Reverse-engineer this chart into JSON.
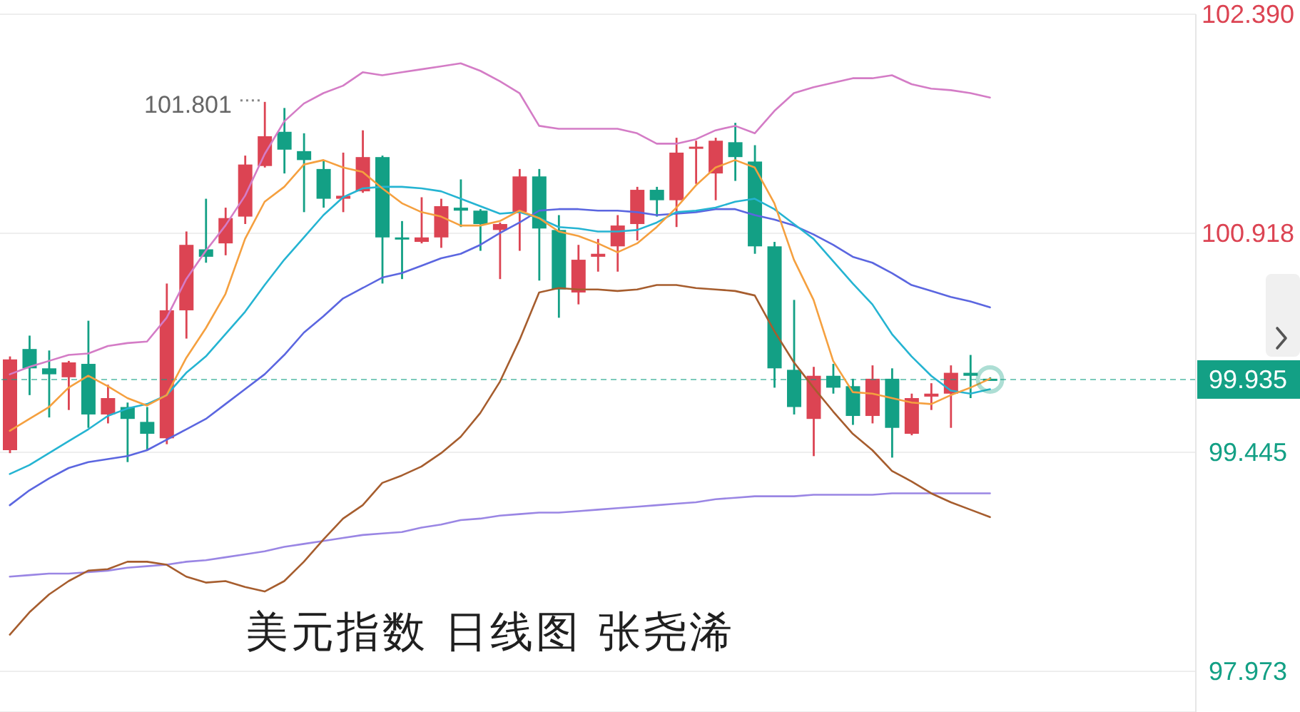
{
  "chart_data": {
    "type": "candlestick",
    "title": "美元指数 日线图 张尧浠",
    "categories": [
      null,
      null,
      null,
      null,
      null,
      null,
      null,
      null,
      null,
      null,
      null,
      null,
      null,
      null,
      null,
      null,
      null,
      null,
      null,
      null,
      null,
      null,
      null,
      null,
      null,
      null,
      null,
      null,
      null,
      null,
      null,
      null,
      null,
      null,
      null,
      null,
      null,
      null,
      null,
      null,
      null,
      null,
      null,
      null,
      null,
      null,
      null,
      null,
      null,
      null,
      null,
      null,
      null,
      null,
      null,
      null,
      null,
      null,
      null,
      null,
      null
    ],
    "ohlc": [
      [
        99.46,
        100.09,
        99.44,
        100.07
      ],
      [
        100.14,
        100.23,
        99.83,
        100.01
      ],
      [
        100.01,
        100.13,
        99.68,
        99.97
      ],
      [
        99.95,
        100.06,
        99.73,
        100.05
      ],
      [
        100.04,
        100.33,
        99.61,
        99.7
      ],
      [
        99.7,
        99.9,
        99.64,
        99.81
      ],
      [
        99.75,
        99.78,
        99.38,
        99.67
      ],
      [
        99.65,
        99.75,
        99.46,
        99.57
      ],
      [
        99.54,
        100.58,
        99.5,
        100.4
      ],
      [
        100.4,
        100.93,
        100.21,
        100.84
      ],
      [
        100.81,
        101.15,
        100.72,
        100.76
      ],
      [
        100.85,
        101.09,
        100.77,
        101.02
      ],
      [
        101.03,
        101.44,
        100.98,
        101.38
      ],
      [
        101.37,
        101.801,
        101.36,
        101.57
      ],
      [
        101.6,
        101.76,
        101.32,
        101.48
      ],
      [
        101.47,
        101.59,
        101.06,
        101.41
      ],
      [
        101.35,
        101.41,
        101.09,
        101.15
      ],
      [
        101.15,
        101.46,
        101.06,
        101.17
      ],
      [
        101.2,
        101.61,
        101.19,
        101.43
      ],
      [
        101.43,
        101.44,
        100.58,
        100.89
      ],
      [
        100.89,
        101.0,
        100.61,
        100.88
      ],
      [
        100.86,
        101.16,
        100.85,
        100.89
      ],
      [
        100.89,
        101.15,
        100.82,
        101.1
      ],
      [
        101.09,
        101.28,
        100.96,
        101.07
      ],
      [
        101.07,
        101.08,
        100.8,
        100.98
      ],
      [
        100.94,
        100.99,
        100.61,
        100.98
      ],
      [
        101.06,
        101.35,
        100.8,
        101.3
      ],
      [
        101.3,
        101.35,
        100.6,
        100.95
      ],
      [
        100.94,
        101.04,
        100.35,
        100.54
      ],
      [
        100.52,
        100.84,
        100.44,
        100.74
      ],
      [
        100.76,
        100.88,
        100.66,
        100.78
      ],
      [
        100.83,
        101.04,
        100.66,
        100.97
      ],
      [
        100.98,
        101.23,
        100.87,
        101.21
      ],
      [
        101.21,
        101.23,
        101.03,
        101.14
      ],
      [
        101.14,
        101.56,
        100.96,
        101.46
      ],
      [
        101.49,
        101.54,
        101.25,
        101.5
      ],
      [
        101.32,
        101.56,
        101.14,
        101.54
      ],
      [
        101.53,
        101.66,
        101.27,
        101.43
      ],
      [
        101.4,
        101.51,
        100.78,
        100.83
      ],
      [
        100.83,
        100.86,
        99.88,
        100.01
      ],
      [
        100.0,
        100.47,
        99.7,
        99.75
      ],
      [
        99.67,
        100.02,
        99.42,
        99.96
      ],
      [
        99.96,
        100.04,
        99.84,
        99.88
      ],
      [
        99.89,
        99.94,
        99.63,
        99.69
      ],
      [
        99.69,
        100.03,
        99.64,
        99.94
      ],
      [
        99.94,
        100.01,
        99.41,
        99.61
      ],
      [
        99.57,
        99.84,
        99.56,
        99.81
      ],
      [
        99.82,
        99.91,
        99.73,
        99.84
      ],
      [
        99.84,
        100.03,
        99.61,
        99.98
      ],
      [
        99.98,
        100.1,
        99.81,
        99.96
      ],
      [
        99.94,
        99.95,
        99.93,
        99.935
      ],
      null,
      null,
      null,
      null,
      null,
      null,
      null,
      null,
      null,
      null
    ],
    "colors": [
      "#dc4453",
      "#13a085",
      "#13a085",
      "#dc4453",
      "#13a085",
      "#dc4453",
      "#13a085",
      "#13a085",
      "#dc4453",
      "#dc4453",
      "#13a085",
      "#dc4453",
      "#dc4453",
      "#dc4453",
      "#13a085",
      "#13a085",
      "#13a085",
      "#dc4453",
      "#dc4453",
      "#13a085",
      "#13a085",
      "#dc4453",
      "#dc4453",
      "#13a085",
      "#13a085",
      "#dc4453",
      "#dc4453",
      "#13a085",
      "#13a085",
      "#dc4453",
      "#dc4453",
      "#dc4453",
      "#dc4453",
      "#13a085",
      "#dc4453",
      "#dc4453",
      "#dc4453",
      "#13a085",
      "#13a085",
      "#13a085",
      "#13a085",
      "#dc4453",
      "#13a085",
      "#13a085",
      "#dc4453",
      "#13a085",
      "#dc4453",
      "#dc4453",
      "#dc4453",
      "#13a085",
      "#13a085",
      null,
      null,
      null,
      null,
      null,
      null,
      null,
      null,
      null,
      null
    ],
    "series": [
      {
        "type": "line",
        "color": "#9a86e4",
        "values": [
          98.61,
          98.62,
          98.63,
          98.63,
          98.64,
          98.65,
          98.67,
          98.68,
          98.69,
          98.71,
          98.72,
          98.74,
          98.76,
          98.78,
          98.81,
          98.83,
          98.85,
          98.87,
          98.89,
          98.9,
          98.91,
          98.94,
          98.96,
          98.99,
          99.0,
          99.02,
          99.03,
          99.04,
          99.04,
          99.05,
          99.06,
          99.07,
          99.08,
          99.09,
          99.1,
          99.11,
          99.13,
          99.14,
          99.15,
          99.15,
          99.15,
          99.16,
          99.16,
          99.16,
          99.16,
          99.17,
          99.17,
          99.17,
          99.17,
          99.17,
          99.17,
          null,
          null,
          null,
          null,
          null,
          null,
          null,
          null,
          null,
          null
        ]
      },
      {
        "type": "line",
        "color": "#d47cc6",
        "values": [
          99.97,
          100.02,
          100.06,
          100.1,
          100.11,
          100.16,
          100.18,
          100.19,
          100.35,
          100.61,
          100.8,
          100.97,
          101.17,
          101.45,
          101.67,
          101.79,
          101.86,
          101.91,
          102.0,
          101.98,
          102.0,
          102.02,
          102.04,
          102.06,
          102.01,
          101.94,
          101.86,
          101.64,
          101.62,
          101.62,
          101.62,
          101.62,
          101.59,
          101.52,
          101.52,
          101.55,
          101.61,
          101.64,
          101.59,
          101.74,
          101.86,
          101.9,
          101.93,
          101.96,
          101.96,
          101.98,
          101.92,
          101.89,
          101.88,
          101.86,
          101.83,
          null,
          null,
          null,
          null,
          null,
          null,
          null,
          null,
          null,
          null
        ]
      },
      {
        "type": "line",
        "color": "#a65d2e",
        "values": [
          98.22,
          98.37,
          98.49,
          98.58,
          98.65,
          98.66,
          98.71,
          98.71,
          98.69,
          98.61,
          98.57,
          98.58,
          98.54,
          98.51,
          98.58,
          98.71,
          98.86,
          99.0,
          99.09,
          99.24,
          99.29,
          99.35,
          99.44,
          99.55,
          99.71,
          99.92,
          100.2,
          100.52,
          100.55,
          100.54,
          100.54,
          100.53,
          100.54,
          100.57,
          100.57,
          100.55,
          100.54,
          100.53,
          100.5,
          100.26,
          100.05,
          99.88,
          99.72,
          99.57,
          99.46,
          99.32,
          99.25,
          99.17,
          99.11,
          99.06,
          99.01,
          null,
          null,
          null,
          null,
          null,
          null,
          null,
          null,
          null,
          null
        ]
      },
      {
        "type": "line",
        "color": "#5b66e0",
        "values": [
          99.09,
          99.19,
          99.27,
          99.34,
          99.38,
          99.4,
          99.42,
          99.46,
          99.53,
          99.6,
          99.67,
          99.77,
          99.87,
          99.97,
          100.1,
          100.25,
          100.36,
          100.48,
          100.55,
          100.62,
          100.65,
          100.7,
          100.75,
          100.78,
          100.84,
          100.92,
          100.99,
          101.07,
          101.08,
          101.08,
          101.07,
          101.07,
          101.06,
          101.04,
          101.05,
          101.06,
          101.08,
          101.08,
          101.04,
          101.01,
          100.97,
          100.91,
          100.84,
          100.76,
          100.72,
          100.65,
          100.57,
          100.53,
          100.49,
          100.46,
          100.42,
          null,
          null,
          null,
          null,
          null,
          null,
          null,
          null,
          null,
          null
        ]
      },
      {
        "type": "line",
        "color": "#25b4d2",
        "values": [
          99.3,
          99.36,
          99.44,
          99.52,
          99.6,
          99.69,
          99.74,
          99.77,
          99.83,
          99.98,
          100.09,
          100.24,
          100.39,
          100.57,
          100.74,
          100.89,
          101.04,
          101.16,
          101.22,
          101.23,
          101.23,
          101.22,
          101.2,
          101.15,
          101.1,
          101.05,
          101.06,
          101.02,
          100.96,
          100.95,
          100.93,
          100.93,
          100.94,
          100.99,
          101.06,
          101.07,
          101.09,
          101.13,
          101.15,
          101.08,
          100.98,
          100.88,
          100.73,
          100.58,
          100.44,
          100.24,
          100.09,
          99.96,
          99.86,
          99.84,
          99.87,
          null,
          null,
          null,
          null,
          null,
          null,
          null,
          null,
          null,
          null
        ]
      },
      {
        "type": "line",
        "color": "#f5a03f",
        "values": [
          99.59,
          99.67,
          99.75,
          99.88,
          99.96,
          99.89,
          99.81,
          99.76,
          99.83,
          100.08,
          100.28,
          100.51,
          100.88,
          101.13,
          101.23,
          101.38,
          101.41,
          101.36,
          101.33,
          101.22,
          101.12,
          101.06,
          101.03,
          100.97,
          100.97,
          101.0,
          101.07,
          101.02,
          100.93,
          100.9,
          100.85,
          100.79,
          100.85,
          100.96,
          101.09,
          101.24,
          101.36,
          101.41,
          101.36,
          101.12,
          100.74,
          100.47,
          100.06,
          99.85,
          99.84,
          99.81,
          99.78,
          99.77,
          99.83,
          99.88,
          99.94,
          null,
          null,
          null,
          null,
          null,
          null,
          null,
          null,
          null,
          null
        ]
      }
    ],
    "ylim": [
      97.7,
      102.39
    ],
    "yticks": [
      {
        "value": 102.39,
        "label": "102.390"
      },
      100.918,
      99.445,
      97.973
    ],
    "grid": "y",
    "tick_labels": "y",
    "ref_lines": [
      {
        "axis": "y",
        "value": 99.935,
        "label": "99.935",
        "color": "#13a085",
        "line_style": "dashed"
      }
    ],
    "annotations": [
      "101.801"
    ]
  }
}
